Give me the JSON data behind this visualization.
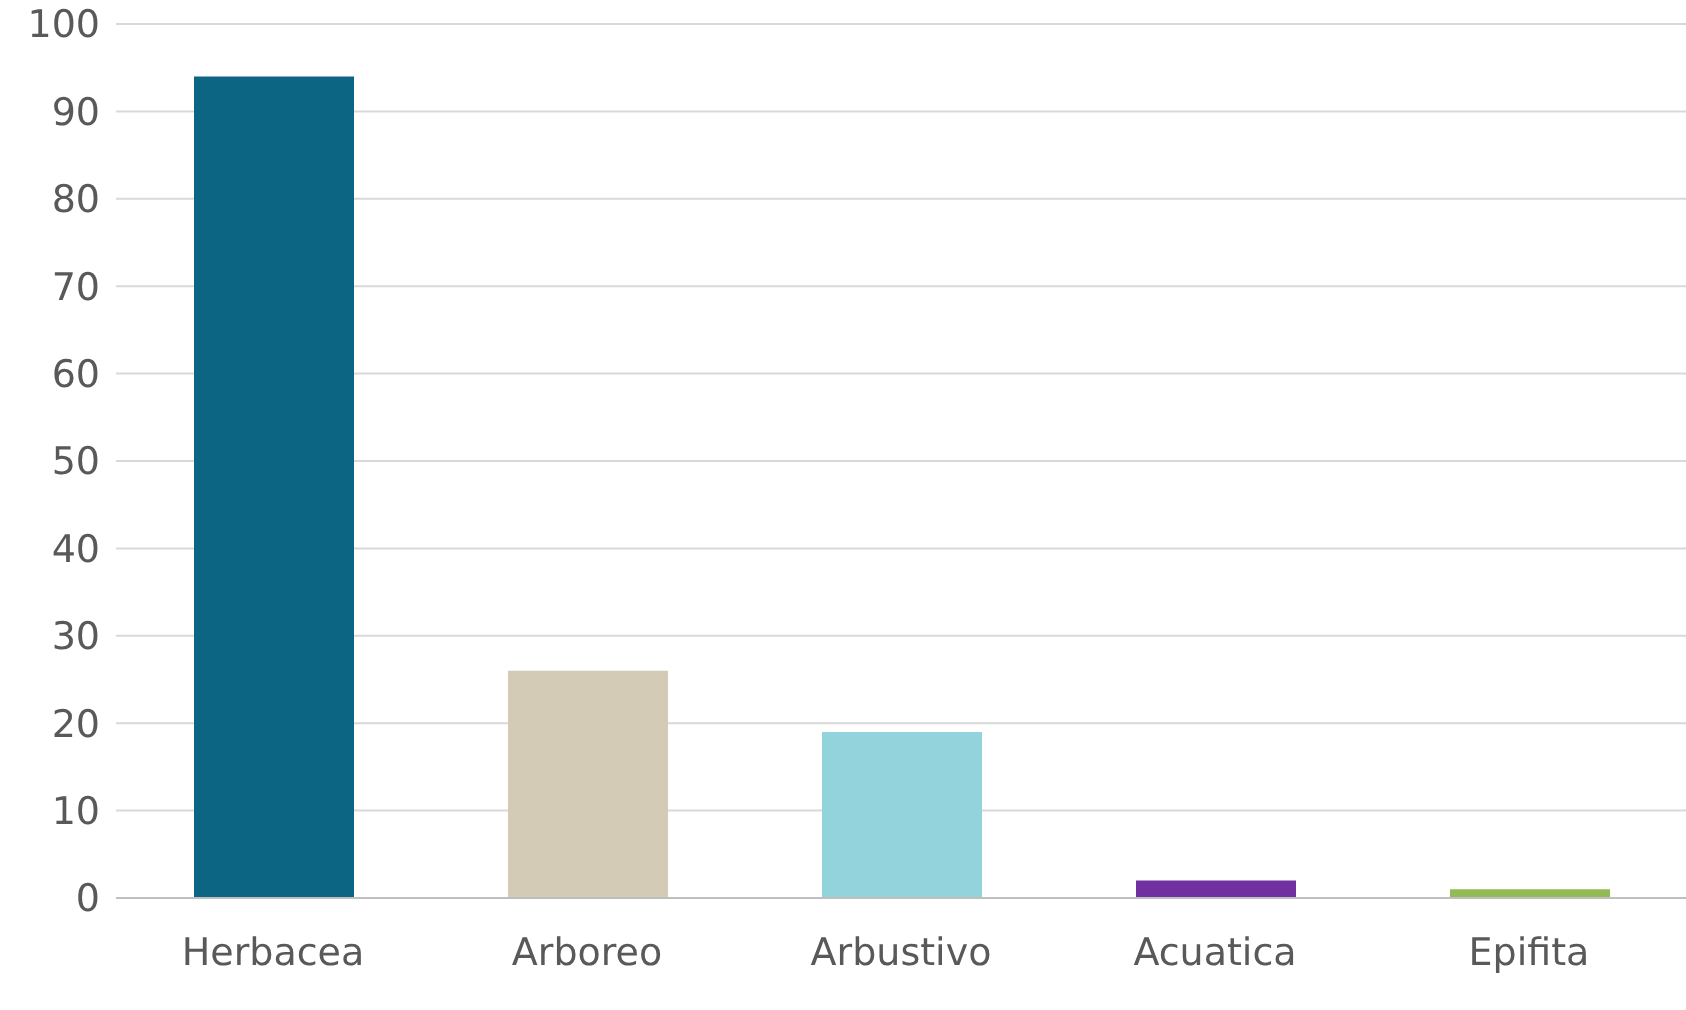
{
  "chart_data": {
    "type": "bar",
    "categories": [
      "Herbacea",
      "Arboreo",
      "Arbustivo",
      "Acuatica",
      "Epifita"
    ],
    "values": [
      94,
      26,
      19,
      2,
      1
    ],
    "colors": [
      "#0d6584",
      "#d3cbb6",
      "#93d3dc",
      "#7030a0",
      "#92bb55"
    ],
    "ylim": [
      0,
      100
    ],
    "yticks": [
      0,
      10,
      20,
      30,
      40,
      50,
      60,
      70,
      80,
      90,
      100
    ],
    "grid": "y",
    "legend": false
  }
}
